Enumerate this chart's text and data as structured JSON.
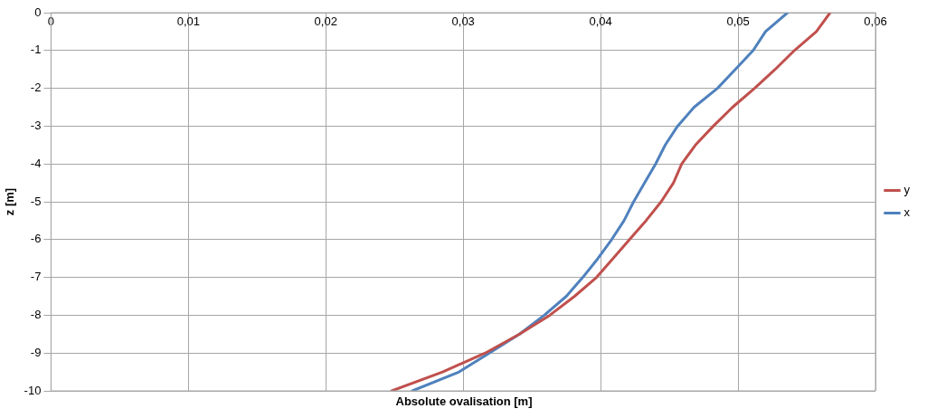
{
  "chart_data": {
    "type": "line",
    "xlabel": "Absolute ovalisation [m]",
    "ylabel": "z [m]",
    "xlim": [
      0,
      0.06
    ],
    "xticks": [
      {
        "value": 0,
        "label": "0"
      },
      {
        "value": 0.01,
        "label": "0,01"
      },
      {
        "value": 0.02,
        "label": "0,02"
      },
      {
        "value": 0.03,
        "label": "0,03"
      },
      {
        "value": 0.04,
        "label": "0,04"
      },
      {
        "value": 0.05,
        "label": "0,05"
      },
      {
        "value": 0.06,
        "label": "0,06"
      }
    ],
    "ylim": [
      -10,
      0
    ],
    "yticks": [
      -10,
      -9,
      -8,
      -7,
      -6,
      -5,
      -4,
      -3,
      -2,
      -1,
      0
    ],
    "grid": true,
    "legend": "right",
    "marker": "none",
    "line_style": "solid",
    "series": [
      {
        "name": "y",
        "color": "#c0504d",
        "x": [
          0.0567,
          0.0557,
          0.0541,
          0.0527,
          0.0512,
          0.0496,
          0.0482,
          0.0469,
          0.0459,
          0.0453,
          0.0444,
          0.0433,
          0.0421,
          0.0409,
          0.0397,
          0.0381,
          0.0363,
          0.0341,
          0.0316,
          0.0285,
          0.0248
        ],
        "values": [
          0,
          -0.5,
          -1,
          -1.5,
          -2,
          -2.5,
          -3,
          -3.5,
          -4,
          -4.5,
          -5,
          -5.5,
          -6,
          -6.5,
          -7,
          -7.5,
          -8,
          -8.5,
          -9,
          -9.5,
          -10
        ]
      },
      {
        "name": "x",
        "color": "#4f81bd",
        "x": [
          0.0536,
          0.052,
          0.0511,
          0.0498,
          0.0485,
          0.0468,
          0.0456,
          0.0447,
          0.044,
          0.0432,
          0.0424,
          0.0417,
          0.0408,
          0.0398,
          0.0387,
          0.0375,
          0.0359,
          0.0341,
          0.0319,
          0.0297,
          0.0263
        ],
        "values": [
          0,
          -0.5,
          -1,
          -1.5,
          -2,
          -2.5,
          -3,
          -3.5,
          -4,
          -4.5,
          -5,
          -5.5,
          -6,
          -6.5,
          -7,
          -7.5,
          -8,
          -8.5,
          -9,
          -9.5,
          -10
        ]
      }
    ]
  }
}
